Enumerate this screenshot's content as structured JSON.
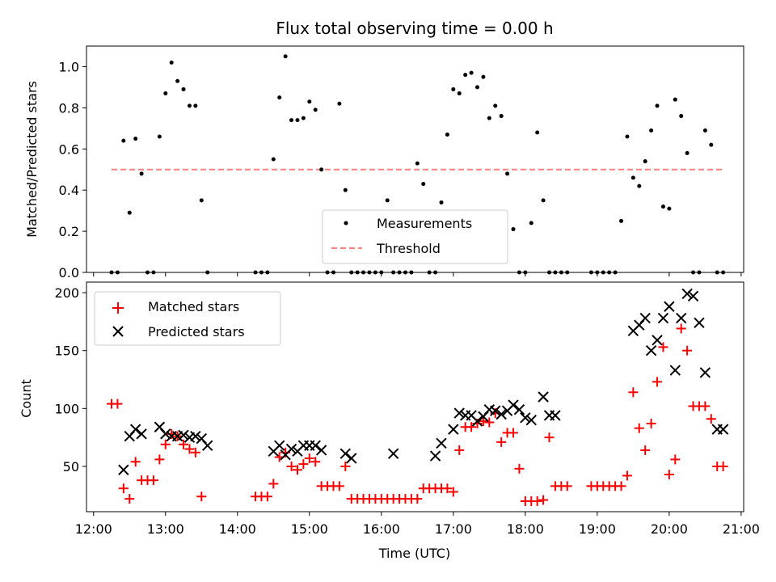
{
  "chart_data": [
    {
      "type": "scatter",
      "title": "Flux total observing time = 0.00 h",
      "xlabel": "",
      "ylabel": "Matched/Predicted stars",
      "xlim": [
        "12:00",
        "21:00"
      ],
      "ylim": [
        0.0,
        1.1
      ],
      "yticks": [
        0.0,
        0.2,
        0.4,
        0.6,
        0.8,
        1.0
      ],
      "ytick_labels": [
        "0.0",
        "0.2",
        "0.4",
        "0.6",
        "0.8",
        "1.0"
      ],
      "legend": {
        "position": "bottom-center",
        "entries": [
          "Measurements",
          "Threshold"
        ]
      },
      "colors": {
        "measurements": "#000000",
        "threshold": "#ff8080"
      },
      "series": [
        {
          "name": "Measurements",
          "marker": "dot",
          "x": [
            "12:15",
            "12:20",
            "12:25",
            "12:30",
            "12:35",
            "12:40",
            "12:45",
            "12:50",
            "12:55",
            "13:00",
            "13:05",
            "13:10",
            "13:15",
            "13:20",
            "13:25",
            "13:30",
            "13:35",
            "14:15",
            "14:20",
            "14:25",
            "14:30",
            "14:35",
            "14:40",
            "14:45",
            "14:50",
            "14:55",
            "15:00",
            "15:05",
            "15:10",
            "15:15",
            "15:20",
            "15:25",
            "15:30",
            "15:35",
            "15:40",
            "15:45",
            "15:50",
            "15:55",
            "16:00",
            "16:05",
            "16:10",
            "16:15",
            "16:20",
            "16:25",
            "16:30",
            "16:35",
            "16:40",
            "16:45",
            "16:50",
            "16:55",
            "17:00",
            "17:05",
            "17:10",
            "17:15",
            "17:20",
            "17:25",
            "17:30",
            "17:35",
            "17:40",
            "17:45",
            "17:50",
            "17:55",
            "18:00",
            "18:05",
            "18:10",
            "18:15",
            "18:20",
            "18:25",
            "18:30",
            "18:35",
            "18:55",
            "19:00",
            "19:05",
            "19:10",
            "19:15",
            "19:20",
            "19:25",
            "19:30",
            "19:35",
            "19:40",
            "19:45",
            "19:50",
            "19:55",
            "20:00",
            "20:05",
            "20:10",
            "20:15",
            "20:20",
            "20:25",
            "20:30",
            "20:35",
            "20:40",
            "20:45"
          ],
          "y": [
            0.0,
            0.0,
            0.64,
            0.29,
            0.65,
            0.48,
            0.0,
            0.0,
            0.66,
            0.87,
            1.02,
            0.93,
            0.89,
            0.81,
            0.81,
            0.35,
            0.0,
            0.0,
            0.0,
            0.0,
            0.55,
            0.85,
            1.05,
            0.74,
            0.74,
            0.75,
            0.83,
            0.79,
            0.5,
            0.0,
            0.0,
            0.82,
            0.4,
            0.0,
            0.0,
            0.0,
            0.0,
            0.0,
            0.0,
            0.35,
            0.0,
            0.0,
            0.0,
            0.0,
            0.53,
            0.43,
            0.0,
            0.0,
            0.34,
            0.67,
            0.89,
            0.87,
            0.96,
            0.97,
            0.9,
            0.95,
            0.75,
            0.81,
            0.76,
            0.48,
            0.21,
            0.0,
            0.0,
            0.24,
            0.68,
            0.35,
            0.0,
            0.0,
            0.0,
            0.0,
            0.0,
            0.0,
            0.0,
            0.0,
            0.0,
            0.25,
            0.66,
            0.46,
            0.42,
            0.54,
            0.69,
            0.81,
            0.32,
            0.31,
            0.84,
            0.76,
            0.58,
            0.0,
            0.0,
            0.69,
            0.62,
            0.0,
            0.0
          ]
        },
        {
          "name": "Threshold",
          "marker": "dashed-line",
          "x": [
            "12:15",
            "20:45"
          ],
          "y": [
            0.5,
            0.5
          ]
        }
      ]
    },
    {
      "type": "scatter",
      "title": "",
      "xlabel": "Time (UTC)",
      "ylabel": "Count",
      "xlim": [
        "12:00",
        "21:00"
      ],
      "xticks": [
        "12:00",
        "13:00",
        "14:00",
        "15:00",
        "16:00",
        "17:00",
        "18:00",
        "19:00",
        "20:00",
        "21:00"
      ],
      "ylim": [
        10,
        210
      ],
      "yticks": [
        50,
        100,
        150,
        200
      ],
      "ytick_labels": [
        "50",
        "100",
        "150",
        "200"
      ],
      "legend": {
        "position": "top-left",
        "entries": [
          "Matched stars",
          "Predicted stars"
        ]
      },
      "colors": {
        "matched": "#ff0000",
        "predicted": "#000000"
      },
      "series": [
        {
          "name": "Matched stars",
          "marker": "plus",
          "x": [
            "12:15",
            "12:20",
            "12:25",
            "12:30",
            "12:35",
            "12:40",
            "12:45",
            "12:50",
            "12:55",
            "13:00",
            "13:05",
            "13:10",
            "13:15",
            "13:20",
            "13:25",
            "13:30",
            "14:15",
            "14:20",
            "14:25",
            "14:30",
            "14:35",
            "14:40",
            "14:45",
            "14:50",
            "14:55",
            "15:00",
            "15:05",
            "15:10",
            "15:15",
            "15:20",
            "15:25",
            "15:30",
            "15:35",
            "15:40",
            "15:45",
            "15:50",
            "15:55",
            "16:00",
            "16:05",
            "16:10",
            "16:15",
            "16:20",
            "16:25",
            "16:30",
            "16:35",
            "16:40",
            "16:45",
            "16:50",
            "16:55",
            "17:00",
            "17:05",
            "17:10",
            "17:15",
            "17:20",
            "17:25",
            "17:30",
            "17:35",
            "17:40",
            "17:45",
            "17:50",
            "17:55",
            "18:00",
            "18:05",
            "18:10",
            "18:15",
            "18:20",
            "18:25",
            "18:30",
            "18:35",
            "18:55",
            "19:00",
            "19:05",
            "19:10",
            "19:15",
            "19:20",
            "19:25",
            "19:30",
            "19:35",
            "19:40",
            "19:45",
            "19:50",
            "19:55",
            "20:00",
            "20:05",
            "20:10",
            "20:15",
            "20:20",
            "20:25",
            "20:30",
            "20:35",
            "20:40",
            "20:45"
          ],
          "y": [
            104,
            104,
            31,
            22,
            54,
            38,
            38,
            38,
            56,
            69,
            78,
            76,
            69,
            65,
            62,
            24,
            24,
            24,
            24,
            35,
            58,
            62,
            50,
            47,
            52,
            57,
            54,
            33,
            33,
            33,
            33,
            50,
            22,
            22,
            22,
            22,
            22,
            22,
            22,
            22,
            22,
            22,
            22,
            22,
            31,
            31,
            31,
            31,
            31,
            28,
            64,
            84,
            84,
            87,
            89,
            88,
            96,
            71,
            79,
            79,
            48,
            20,
            20,
            20,
            21,
            75,
            33,
            33,
            33,
            33,
            33,
            33,
            33,
            33,
            33,
            42,
            114,
            83,
            64,
            87,
            123,
            153,
            43,
            56,
            169,
            150,
            102,
            102,
            102,
            91,
            50,
            50
          ]
        },
        {
          "name": "Predicted stars",
          "marker": "x",
          "x": [
            "12:25",
            "12:30",
            "12:35",
            "12:40",
            "12:55",
            "13:00",
            "13:05",
            "13:10",
            "13:15",
            "13:20",
            "13:25",
            "13:30",
            "13:35",
            "14:30",
            "14:35",
            "14:40",
            "14:45",
            "14:50",
            "14:55",
            "15:00",
            "15:05",
            "15:10",
            "15:30",
            "15:35",
            "16:10",
            "16:45",
            "16:50",
            "17:00",
            "17:05",
            "17:10",
            "17:15",
            "17:20",
            "17:25",
            "17:30",
            "17:35",
            "17:40",
            "17:45",
            "17:50",
            "17:55",
            "18:00",
            "18:05",
            "18:15",
            "18:20",
            "18:25",
            "19:30",
            "19:35",
            "19:40",
            "19:45",
            "19:50",
            "19:55",
            "20:00",
            "20:05",
            "20:10",
            "20:15",
            "20:20",
            "20:25",
            "20:30",
            "20:40",
            "20:45"
          ],
          "y": [
            47,
            76,
            82,
            78,
            84,
            78,
            76,
            76,
            77,
            75,
            76,
            74,
            68,
            63,
            68,
            60,
            65,
            63,
            68,
            68,
            68,
            64,
            61,
            57,
            61,
            59,
            70,
            82,
            96,
            94,
            94,
            89,
            93,
            99,
            98,
            95,
            98,
            103,
            99,
            92,
            90,
            110,
            94,
            94,
            167,
            172,
            178,
            150,
            159,
            178,
            188,
            133,
            178,
            199,
            197,
            174,
            131,
            82,
            82
          ]
        }
      ]
    }
  ]
}
